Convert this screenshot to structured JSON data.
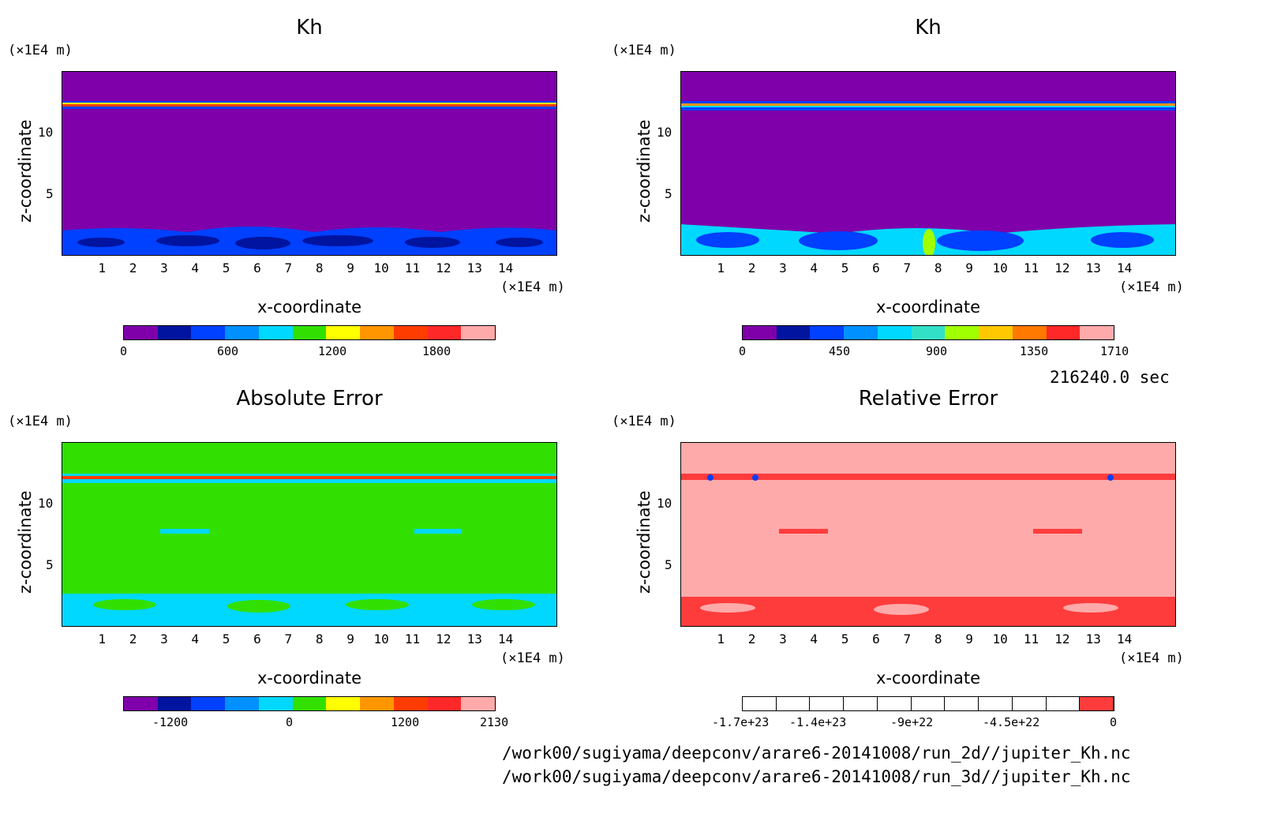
{
  "chart_data": [
    {
      "type": "heatmap",
      "title": "Kh",
      "xlabel": "x-coordinate",
      "ylabel": "z-coordinate",
      "x_unit": "(×1E4 m)",
      "y_unit": "(×1E4 m)",
      "xlim": [
        0,
        15
      ],
      "ylim": [
        0,
        15
      ],
      "x_ticks": [
        "1",
        "2",
        "3",
        "4",
        "5",
        "6",
        "7",
        "8",
        "9",
        "10",
        "11",
        "12",
        "13",
        "14"
      ],
      "y_ticks": [
        "5",
        "10"
      ],
      "colorbar": {
        "ticks": [
          "0",
          "600",
          "1200",
          "1800"
        ],
        "max": 2130
      },
      "colors": [
        "#7f00aa",
        "#0014a0",
        "#0040ff",
        "#0090ff",
        "#00d8ff",
        "#32e000",
        "#ffff00",
        "#ff9600",
        "#ff3c00",
        "#ff2828",
        "#ffaaaa"
      ]
    },
    {
      "type": "heatmap",
      "title": "Kh",
      "xlabel": "x-coordinate",
      "ylabel": "z-coordinate",
      "x_unit": "(×1E4 m)",
      "y_unit": "(×1E4 m)",
      "xlim": [
        0,
        15
      ],
      "ylim": [
        0,
        15
      ],
      "x_ticks": [
        "1",
        "2",
        "3",
        "4",
        "5",
        "6",
        "7",
        "8",
        "9",
        "10",
        "11",
        "12",
        "13",
        "14"
      ],
      "y_ticks": [
        "5",
        "10"
      ],
      "colorbar": {
        "ticks": [
          "0",
          "450",
          "900",
          "1350",
          "1710"
        ],
        "max": 1710
      },
      "colors": [
        "#7f00aa",
        "#0014a0",
        "#0040ff",
        "#0090ff",
        "#00d8ff",
        "#32e0c8",
        "#a0ff00",
        "#ffc800",
        "#ff7800",
        "#ff2828",
        "#ffaaaa"
      ]
    },
    {
      "type": "heatmap",
      "title": "Absolute Error",
      "xlabel": "x-coordinate",
      "ylabel": "z-coordinate",
      "x_unit": "(×1E4 m)",
      "y_unit": "(×1E4 m)",
      "xlim": [
        0,
        15
      ],
      "ylim": [
        0,
        15
      ],
      "x_ticks": [
        "1",
        "2",
        "3",
        "4",
        "5",
        "6",
        "7",
        "8",
        "9",
        "10",
        "11",
        "12",
        "13",
        "14"
      ],
      "y_ticks": [
        "5",
        "10"
      ],
      "colorbar": {
        "ticks": [
          "-1200",
          "0",
          "1200",
          "2130"
        ],
        "max": 2130
      },
      "colors": [
        "#7f00aa",
        "#0014a0",
        "#0040ff",
        "#0090ff",
        "#00d8ff",
        "#32e000",
        "#ffff00",
        "#ff9600",
        "#ff3c00",
        "#ff2828",
        "#ffaaaa"
      ]
    },
    {
      "type": "heatmap",
      "title": "Relative Error",
      "xlabel": "x-coordinate",
      "ylabel": "z-coordinate",
      "x_unit": "(×1E4 m)",
      "y_unit": "(×1E4 m)",
      "xlim": [
        0,
        15
      ],
      "ylim": [
        0,
        15
      ],
      "x_ticks": [
        "1",
        "2",
        "3",
        "4",
        "5",
        "6",
        "7",
        "8",
        "9",
        "10",
        "11",
        "12",
        "13",
        "14"
      ],
      "y_ticks": [
        "5",
        "10"
      ],
      "colorbar": {
        "ticks": [
          "-1.7e+23",
          "-1.4e+23",
          "-9e+22",
          "-4.5e+22",
          "0"
        ],
        "max": 0
      },
      "colors": [
        "#ffffff",
        "#ffffff",
        "#ffffff",
        "#ffffff",
        "#ffffff",
        "#ffffff",
        "#ffffff",
        "#ffffff",
        "#ffffff",
        "#ffffff",
        "#ff3c3c"
      ],
      "background_color": "#ffaaaa"
    }
  ],
  "time_label": "216240.0 sec",
  "file_paths": [
    "/work00/sugiyama/deepconv/arare6-20141008/run_2d//jupiter_Kh.nc",
    "/work00/sugiyama/deepconv/arare6-20141008/run_3d//jupiter_Kh.nc"
  ]
}
